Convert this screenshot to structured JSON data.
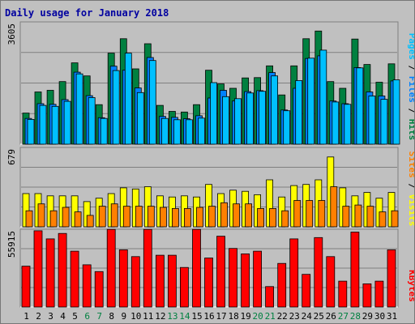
{
  "title": "Daily usage for January 2018",
  "colors": {
    "background": "#c0c0c0",
    "title": "#0000a0",
    "hits": "#008040",
    "files": "#0080ff",
    "pages": "#00c0ff",
    "visits": "#ffff00",
    "sites": "#ff8000",
    "kbytes": "#ff0000",
    "weekend_day": "#008040",
    "weekday": "#000000"
  },
  "legend": {
    "top_pages": "Pages",
    "top_files": "Files",
    "top_hits": "Hits",
    "sep": " / ",
    "mid_sites": "Sites",
    "mid_visits": "Visits",
    "bot_kbytes": "KBytes"
  },
  "chart_data": {
    "type": "bar",
    "title": "Daily usage for January 2018",
    "categories": [
      "1",
      "2",
      "3",
      "4",
      "5",
      "6",
      "7",
      "8",
      "9",
      "10",
      "11",
      "12",
      "13",
      "14",
      "15",
      "16",
      "17",
      "18",
      "19",
      "20",
      "21",
      "22",
      "23",
      "24",
      "25",
      "26",
      "27",
      "28",
      "29",
      "30",
      "31"
    ],
    "weekend_days": [
      "6",
      "7",
      "13",
      "14",
      "20",
      "21",
      "27",
      "28"
    ],
    "panels": [
      {
        "name": "top",
        "max_label": "3605",
        "ylim": [
          0,
          3605
        ],
        "series": [
          {
            "name": "Hits",
            "values": [
              930,
              1560,
              1610,
              1870,
              2430,
              2040,
              1180,
              2720,
              3150,
              2250,
              3000,
              1160,
              980,
              960,
              1180,
              2210,
              1800,
              1670,
              1980,
              1990,
              2340,
              1470,
              2340,
              3150,
              3380,
              1870,
              1670,
              3140,
              2380,
              1850,
              2400
            ]
          },
          {
            "name": "Files",
            "values": [
              770,
              1210,
              1190,
              1330,
              2150,
              1450,
              790,
              2330,
              2210,
              1680,
              2590,
              830,
              800,
              760,
              850,
              1380,
              1610,
              1290,
              1570,
              1600,
              2140,
              1020,
              1670,
              2560,
              2640,
              1290,
              1210,
              2290,
              1560,
              1440,
              1890
            ]
          },
          {
            "name": "Pages",
            "values": [
              740,
              1160,
              1130,
              1280,
              2100,
              1390,
              770,
              2200,
              2720,
              1540,
              2500,
              770,
              730,
              730,
              780,
              1840,
              1420,
              1360,
              1530,
              1580,
              2040,
              1000,
              1900,
              2570,
              2810,
              1260,
              1190,
              2280,
              1440,
              1340,
              1920
            ]
          }
        ]
      },
      {
        "name": "middle",
        "max_label": "679",
        "ylim": [
          0,
          679
        ],
        "series": [
          {
            "name": "Visits",
            "values": [
              290,
              290,
              270,
              270,
              270,
              220,
              250,
              290,
              340,
              330,
              350,
              270,
              260,
              270,
              260,
              370,
              290,
              320,
              310,
              280,
              410,
              260,
              360,
              370,
              410,
              610,
              340,
              270,
              300,
              250,
              300
            ]
          },
          {
            "name": "Sites",
            "values": [
              140,
              200,
              140,
              170,
              130,
              100,
              180,
              200,
              180,
              180,
              180,
              170,
              160,
              160,
              170,
              180,
              210,
              200,
              200,
              160,
              160,
              140,
              230,
              230,
              230,
              350,
              180,
              190,
              180,
              130,
              140
            ]
          }
        ]
      },
      {
        "name": "bottom",
        "max_label": "55915",
        "ylim": [
          0,
          55915
        ],
        "series": [
          {
            "name": "KBytes",
            "values": [
              30000,
              56000,
              50000,
              54000,
              41000,
              31000,
              26000,
              57000,
              42000,
              37000,
              57000,
              38000,
              38000,
              29000,
              57000,
              36000,
              52000,
              43000,
              39000,
              41000,
              15000,
              32000,
              50000,
              24000,
              51000,
              37000,
              19000,
              55000,
              17000,
              19000,
              42000
            ]
          }
        ]
      }
    ]
  }
}
